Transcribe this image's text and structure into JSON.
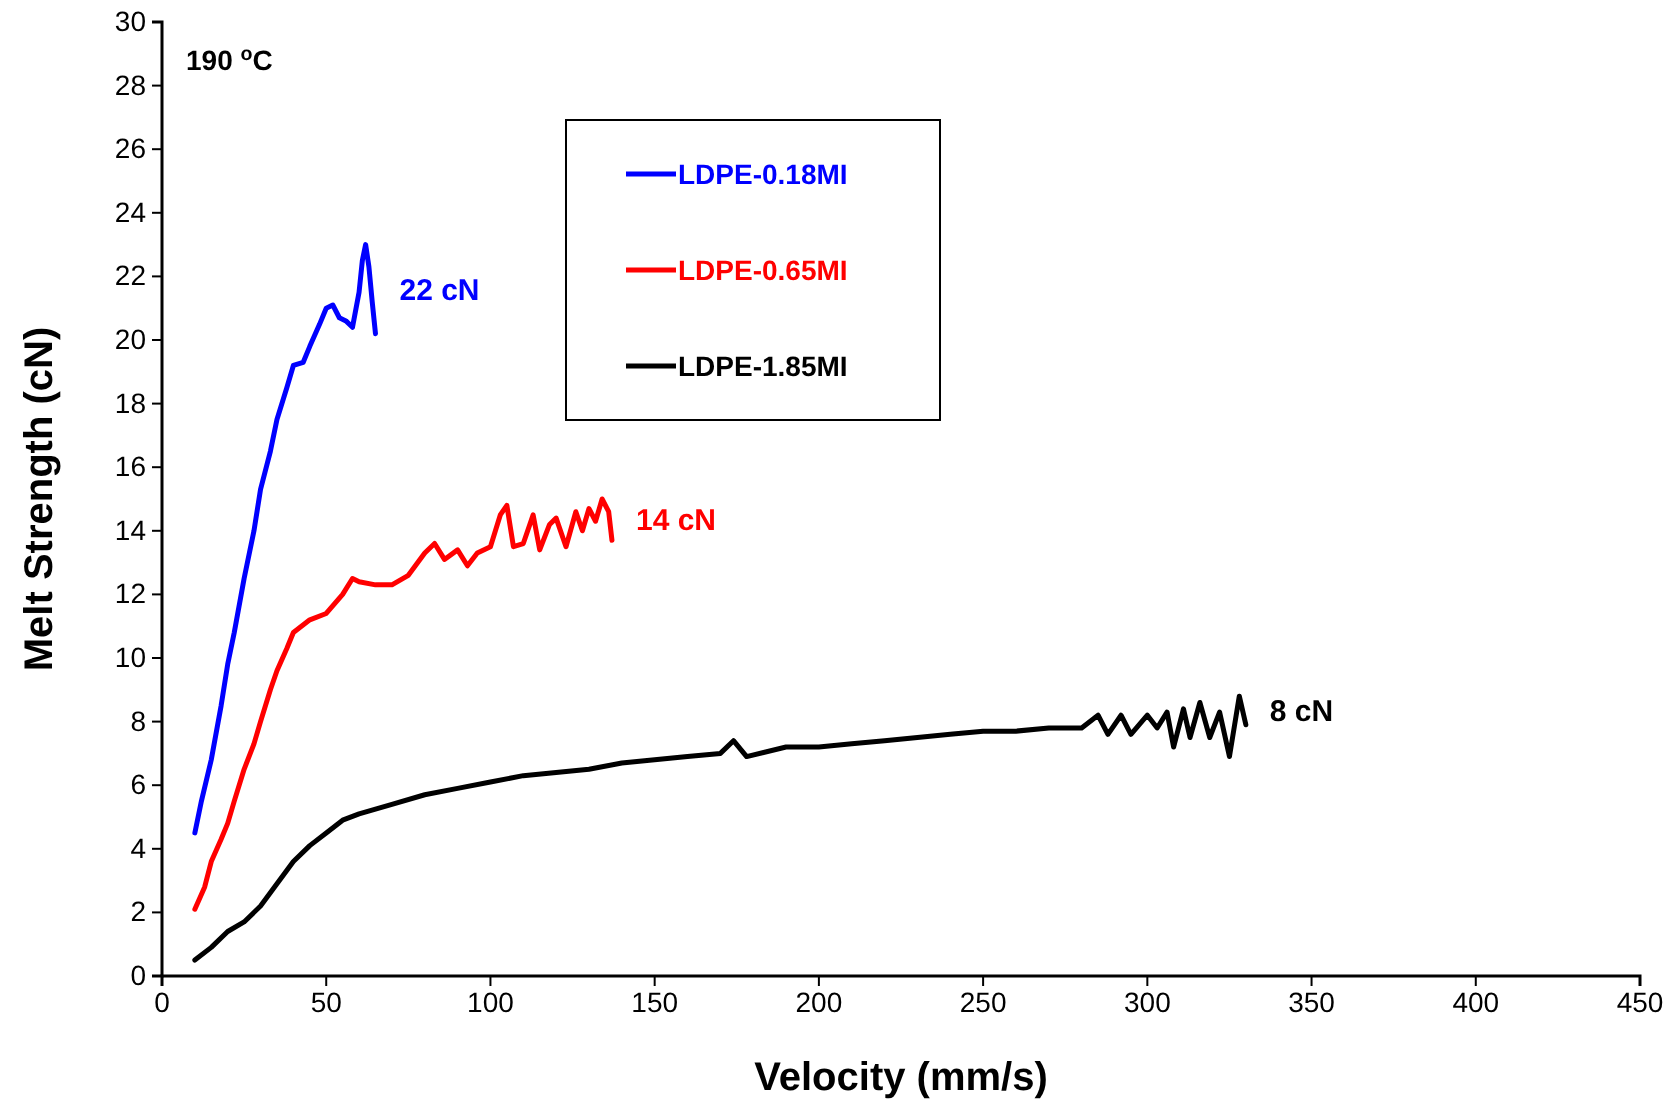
{
  "chart_data": {
    "type": "line",
    "xlabel": "Velocity (mm/s)",
    "ylabel": "Melt Strength (cN)",
    "xlim": [
      0,
      450
    ],
    "ylim": [
      0,
      30
    ],
    "xticks": [
      0,
      50,
      100,
      150,
      200,
      250,
      300,
      350,
      400,
      450
    ],
    "yticks": [
      0,
      2,
      4,
      6,
      8,
      10,
      12,
      14,
      16,
      18,
      20,
      22,
      24,
      26,
      28,
      30
    ],
    "grid": false,
    "legend": "top",
    "marker": "none",
    "line_style": "solid",
    "series": [
      {
        "name": "LDPE-0.18MI",
        "color": "#0000ff",
        "x": [
          10,
          12,
          15,
          18,
          20,
          22,
          25,
          28,
          30,
          33,
          35,
          38,
          40,
          43,
          45,
          48,
          50,
          52,
          54,
          56,
          58,
          60,
          61,
          62,
          63,
          64,
          65
        ],
        "values": [
          4.5,
          5.5,
          6.8,
          8.5,
          9.8,
          10.8,
          12.5,
          14,
          15.3,
          16.5,
          17.5,
          18.5,
          19.2,
          19.3,
          19.8,
          20.5,
          21,
          21.1,
          20.7,
          20.6,
          20.4,
          21.5,
          22.5,
          23,
          22.3,
          21.2,
          20.2
        ]
      },
      {
        "name": "LDPE-0.65MI",
        "color": "#ff0000",
        "x": [
          10,
          13,
          15,
          18,
          20,
          22,
          25,
          28,
          30,
          33,
          35,
          38,
          40,
          45,
          50,
          55,
          58,
          60,
          65,
          70,
          75,
          80,
          83,
          86,
          90,
          93,
          96,
          100,
          103,
          105,
          107,
          110,
          113,
          115,
          118,
          120,
          123,
          126,
          128,
          130,
          132,
          134,
          136,
          137
        ],
        "values": [
          2.1,
          2.8,
          3.6,
          4.3,
          4.8,
          5.5,
          6.5,
          7.3,
          8,
          9,
          9.6,
          10.3,
          10.8,
          11.2,
          11.4,
          12,
          12.5,
          12.4,
          12.3,
          12.3,
          12.6,
          13.3,
          13.6,
          13.1,
          13.4,
          12.9,
          13.3,
          13.5,
          14.5,
          14.8,
          13.5,
          13.6,
          14.5,
          13.4,
          14.2,
          14.4,
          13.5,
          14.6,
          14,
          14.7,
          14.3,
          15,
          14.6,
          13.7
        ]
      },
      {
        "name": "LDPE-1.85MI",
        "color": "#000000",
        "x": [
          10,
          15,
          20,
          25,
          30,
          35,
          40,
          45,
          50,
          55,
          60,
          70,
          80,
          90,
          100,
          110,
          120,
          130,
          140,
          150,
          160,
          170,
          174,
          178,
          190,
          200,
          210,
          220,
          230,
          240,
          250,
          260,
          270,
          280,
          285,
          288,
          292,
          295,
          300,
          303,
          306,
          308,
          311,
          313,
          316,
          319,
          322,
          325,
          328,
          330
        ],
        "values": [
          0.5,
          0.9,
          1.4,
          1.7,
          2.2,
          2.9,
          3.6,
          4.1,
          4.5,
          4.9,
          5.1,
          5.4,
          5.7,
          5.9,
          6.1,
          6.3,
          6.4,
          6.5,
          6.7,
          6.8,
          6.9,
          7,
          7.4,
          6.9,
          7.2,
          7.2,
          7.3,
          7.4,
          7.5,
          7.6,
          7.7,
          7.7,
          7.8,
          7.8,
          8.2,
          7.6,
          8.2,
          7.6,
          8.2,
          7.8,
          8.3,
          7.2,
          8.4,
          7.5,
          8.6,
          7.5,
          8.3,
          6.9,
          8.8,
          7.9
        ]
      }
    ],
    "annotations": [
      "22 cN",
      "14 cN",
      "8 cN",
      "190 $^{o}$C"
    ]
  }
}
